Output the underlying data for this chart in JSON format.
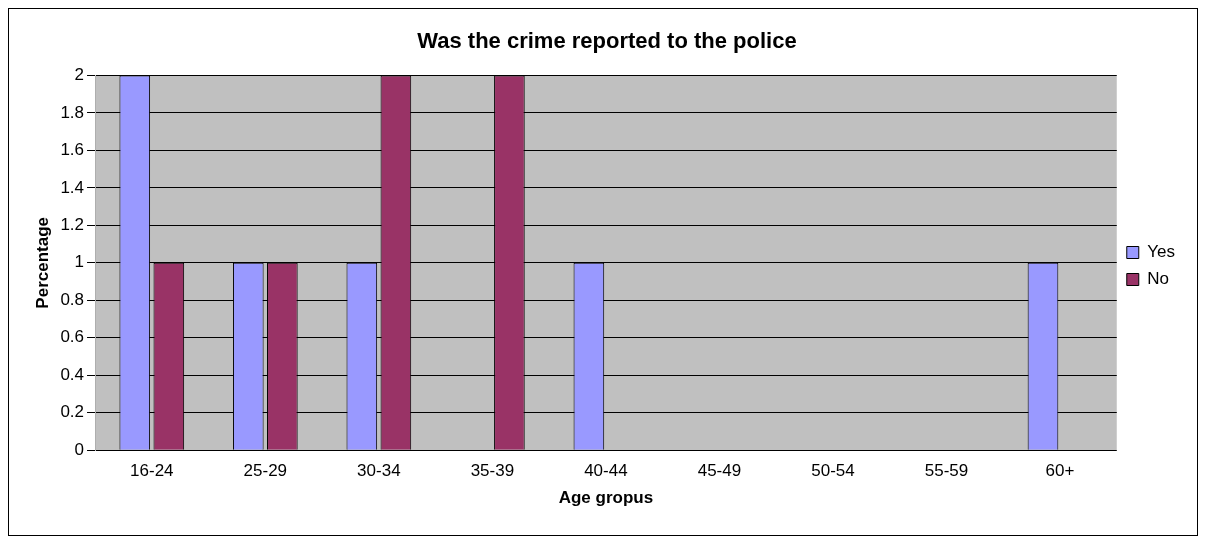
{
  "chart_data": {
    "type": "bar",
    "title": "Was the crime reported to the police",
    "xlabel": "Age gropus",
    "ylabel": "Percentage",
    "categories": [
      "16-24",
      "25-29",
      "30-34",
      "35-39",
      "40-44",
      "45-49",
      "50-54",
      "55-59",
      "60+"
    ],
    "series": [
      {
        "name": "Yes",
        "color": "#9999ff",
        "values": [
          2,
          1,
          1,
          0,
          1,
          0,
          0,
          0,
          1
        ]
      },
      {
        "name": "No",
        "color": "#993366",
        "values": [
          1,
          1,
          2,
          2,
          0,
          0,
          0,
          0,
          0
        ]
      }
    ],
    "ylim": [
      0,
      2
    ],
    "yticks": [
      0,
      0.2,
      0.4,
      0.6,
      0.8,
      1,
      1.2,
      1.4,
      1.6,
      1.8,
      2
    ],
    "grid": "y",
    "legend": "right"
  }
}
